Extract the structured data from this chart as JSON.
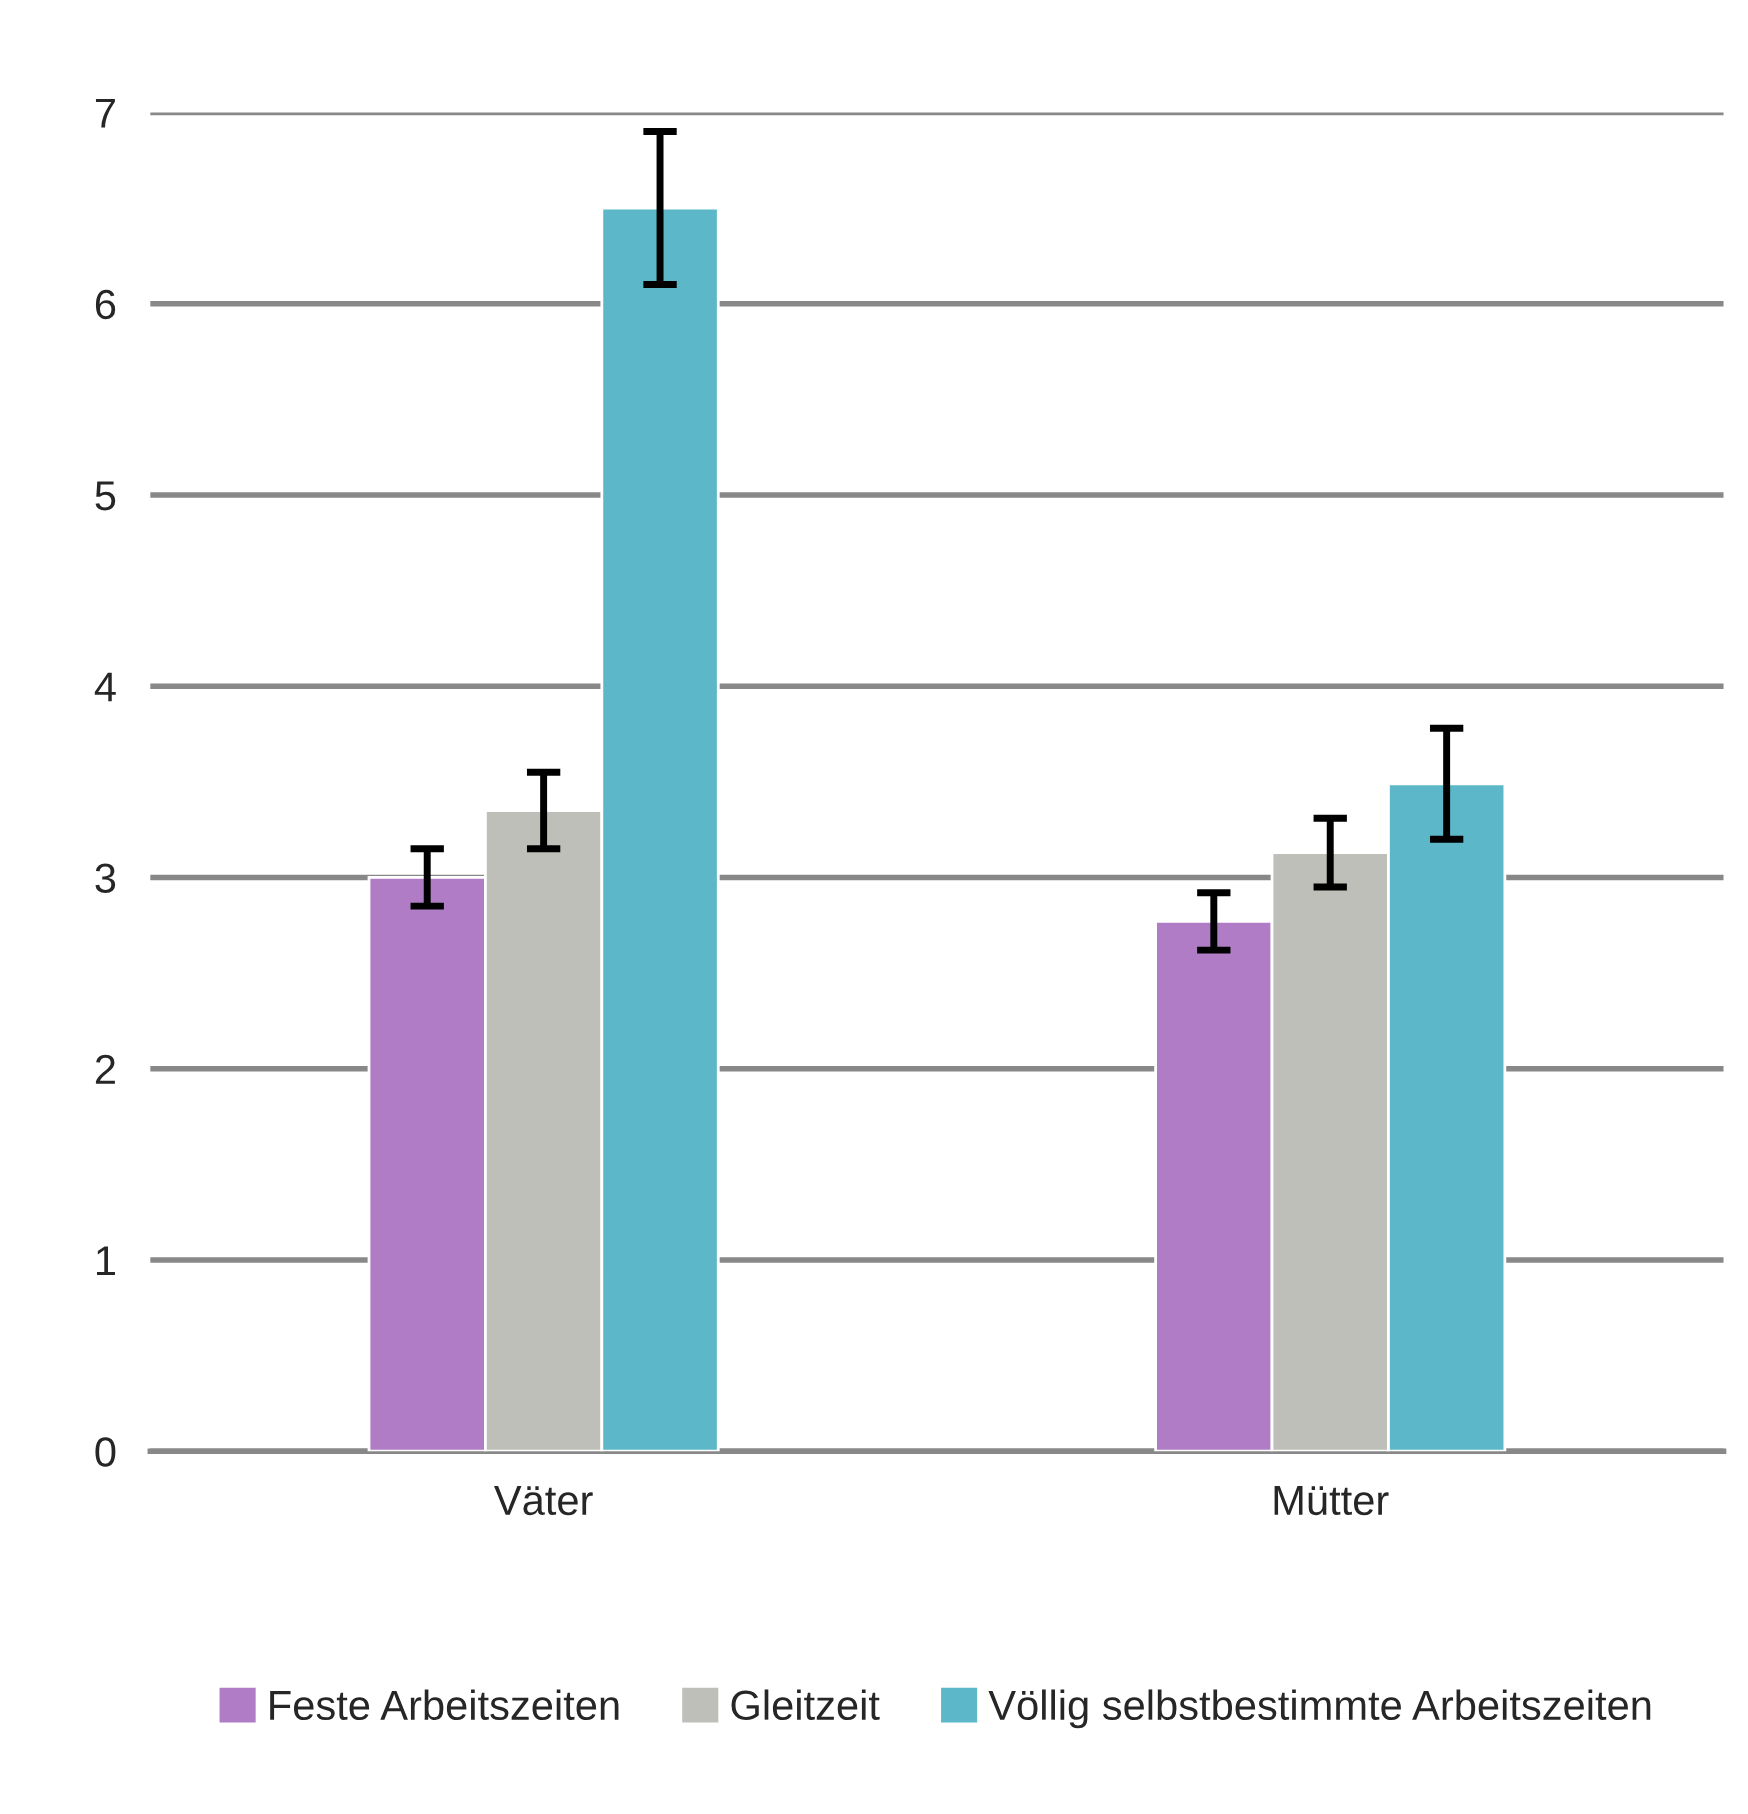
{
  "chart_data": {
    "type": "bar",
    "categories": [
      "Väter",
      "Mütter"
    ],
    "series": [
      {
        "name": "Feste Arbeitszeiten",
        "color": "#b07cc6",
        "values": [
          3.0,
          2.77
        ],
        "errors": [
          0.15,
          0.15
        ]
      },
      {
        "name": "Gleitzeit",
        "color": "#bfbfb9",
        "values": [
          3.35,
          3.13
        ],
        "errors": [
          0.2,
          0.18
        ]
      },
      {
        "name": "Völlig selbstbestimmte Arbeitszeiten",
        "color": "#5cb8c8",
        "values": [
          6.5,
          3.49
        ],
        "errors": [
          0.4,
          0.29
        ]
      }
    ],
    "ylim": [
      0,
      7
    ],
    "yticks": [
      0,
      1,
      2,
      3,
      4,
      5,
      6,
      7
    ],
    "grid": "y",
    "legend": "bottom"
  }
}
